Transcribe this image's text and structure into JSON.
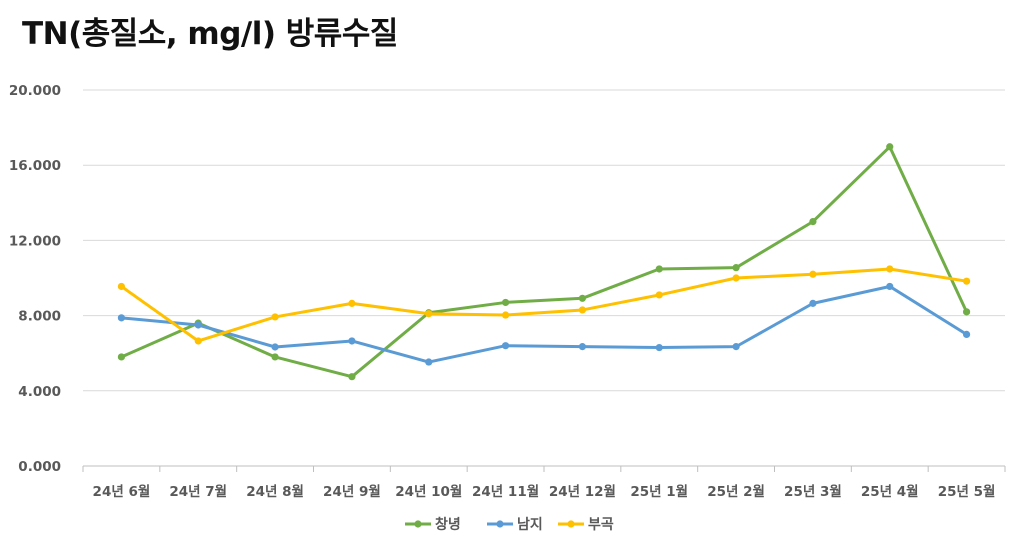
{
  "chart_data": {
    "type": "line",
    "title": "TN(총질소, mg/l) 방류수질",
    "categories": [
      "24년 6월",
      "24년 7월",
      "24년 8월",
      "24년 9월",
      "24년 10월",
      "24년 11월",
      "24년 12월",
      "25년 1월",
      "25년 2월",
      "25년 3월",
      "25년 4월",
      "25년 5월"
    ],
    "y_ticks": [
      "0.000",
      "4.000",
      "8.000",
      "12.000",
      "16.000",
      "20.000"
    ],
    "ylim": [
      0,
      20
    ],
    "grid": true,
    "legend_position": "bottom",
    "series": [
      {
        "name": "창녕",
        "color": "#70AD47",
        "values": [
          5.8,
          7.6,
          5.8,
          4.75,
          8.15,
          8.7,
          8.92,
          10.48,
          10.55,
          13.0,
          16.98,
          8.2
        ]
      },
      {
        "name": "남지",
        "color": "#5B9BD5",
        "values": [
          7.88,
          7.5,
          6.33,
          6.65,
          5.53,
          6.4,
          6.35,
          6.3,
          6.35,
          8.65,
          9.55,
          7.0
        ]
      },
      {
        "name": "부곡",
        "color": "#FFC000",
        "values": [
          9.55,
          6.65,
          7.93,
          8.65,
          8.1,
          8.03,
          8.3,
          9.1,
          10.0,
          10.2,
          10.48,
          9.83
        ]
      }
    ]
  }
}
